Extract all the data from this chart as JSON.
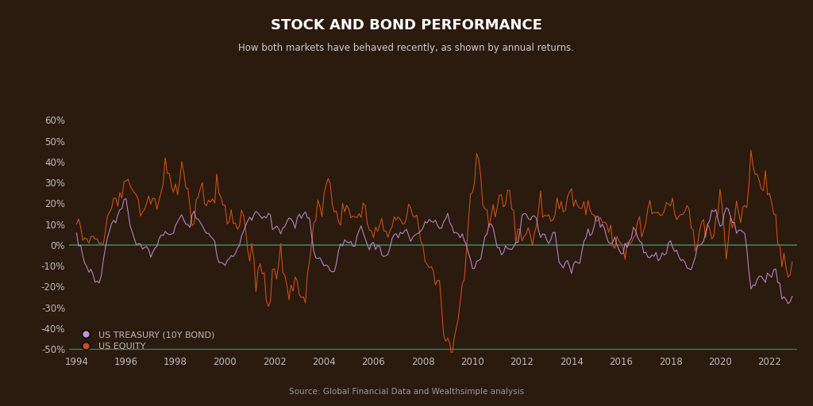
{
  "title": "STOCK AND BOND PERFORMANCE",
  "subtitle": "How both markets have behaved recently, as shown by annual returns.",
  "source": "Source: Global Financial Data and Wealthsimple analysis",
  "background_color": "#2b1a0e",
  "equity_color": "#c8501a",
  "bond_color": "#c090d8",
  "zero_line_color": "#3a7a5a",
  "bottom_line_color": "#3a7a5a",
  "title_color": "#ffffff",
  "subtitle_color": "#cccccc",
  "tick_color": "#bbbbbb",
  "source_color": "#999999",
  "ylim": [
    -0.52,
    0.65
  ],
  "yticks": [
    -0.5,
    -0.4,
    -0.3,
    -0.2,
    -0.1,
    0.0,
    0.1,
    0.2,
    0.3,
    0.4,
    0.5,
    0.6
  ],
  "legend_bond": "US TREASURY (10Y BOND)",
  "legend_equity": "US EQUITY"
}
